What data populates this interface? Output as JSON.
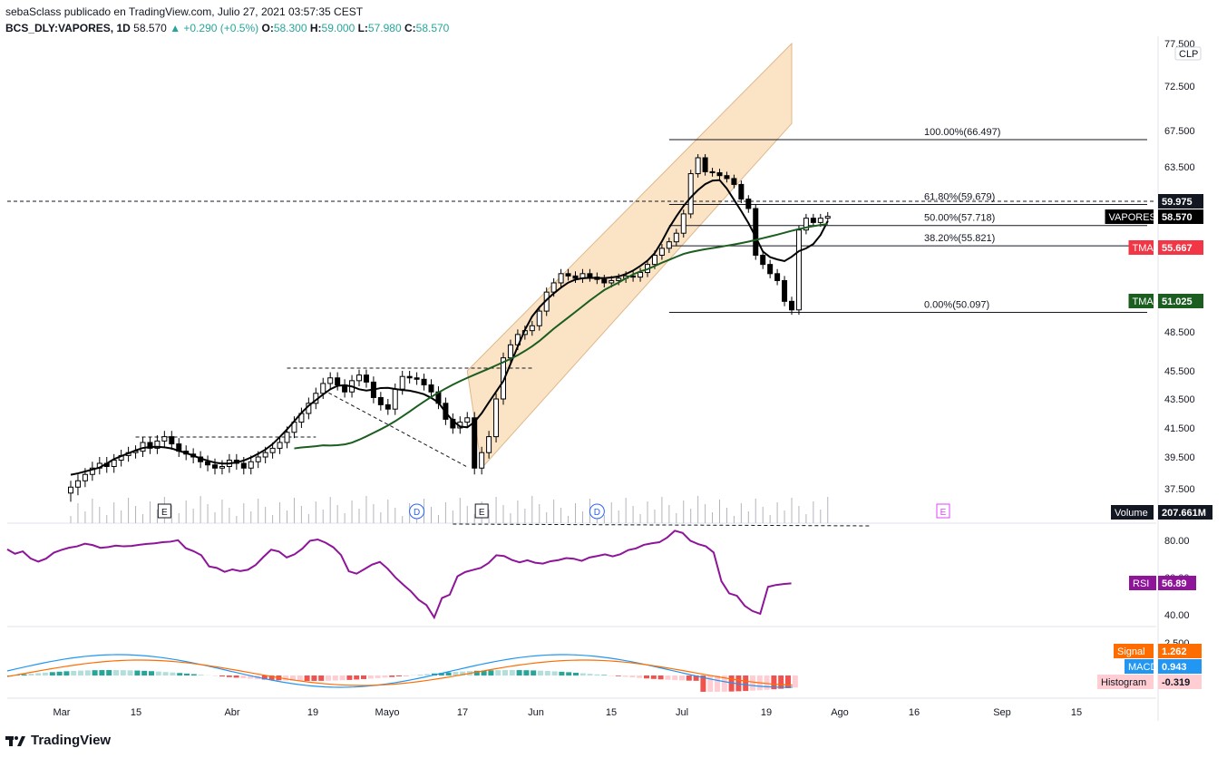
{
  "header": {
    "line1": "sebaSclass publicado en TradingView.com, Julio 27, 2021 03:57:35 CEST",
    "symbol": "BCS_DLY:VAPORES, 1D",
    "price": "58.570",
    "change": "▲ +0.290 (+0.5%)",
    "o_label": "O:",
    "o": "58.300",
    "h_label": "H:",
    "h": "59.000",
    "l_label": "L:",
    "l": "57.980",
    "c_label": "C:",
    "c": "58.570"
  },
  "footer": {
    "brand": "TradingView"
  },
  "colors": {
    "up": "#ffffff",
    "down": "#000000",
    "tma_red": "#f23645",
    "tma_black": "#000000",
    "tma_green": "#1b5e20",
    "channel": "#fbe0c0",
    "rsi": "#8e1599",
    "macd": "#2196f3",
    "signal": "#ff6d00",
    "hist_pos_strong": "#26a69a",
    "hist_pos_weak": "#b2dfdb",
    "hist_neg_strong": "#ef5350",
    "hist_neg_weak": "#ffcdd2"
  },
  "chart_data": {
    "type": "candlestick",
    "symbol": "VAPORES",
    "currency": "CLP",
    "price_ticks": [
      "77.500",
      "72.500",
      "67.500",
      "63.500",
      "59.975",
      "58.570",
      "55.667",
      "51.025",
      "48.500",
      "45.500",
      "43.500",
      "41.500",
      "39.500",
      "37.500"
    ],
    "price_axis_ticks": [
      77.5,
      72.5,
      67.5,
      63.5,
      48.5,
      45.5,
      43.5,
      41.5,
      39.5,
      37.5
    ],
    "x_ticks": [
      "Mar",
      "15",
      "Abr",
      "19",
      "Mayo",
      "17",
      "Jun",
      "15",
      "Jul",
      "19",
      "Ago",
      "16",
      "Sep",
      "15"
    ],
    "last_price": 58.57,
    "dashed_level": 59.975,
    "candles_close": [
      37.6,
      38.0,
      38.4,
      38.8,
      39.1,
      38.9,
      39.3,
      39.6,
      39.8,
      39.9,
      40.5,
      40.1,
      40.6,
      40.9,
      40.4,
      39.9,
      39.7,
      39.5,
      39.2,
      39.0,
      38.8,
      38.9,
      39.3,
      39.1,
      38.8,
      39.2,
      39.5,
      39.8,
      40.1,
      40.5,
      41.2,
      41.9,
      42.5,
      43.2,
      43.9,
      44.6,
      45.0,
      44.5,
      44.0,
      44.8,
      45.2,
      44.7,
      43.6,
      43.1,
      42.8,
      44.2,
      45.1,
      45.0,
      44.9,
      44.5,
      44.0,
      43.2,
      42.1,
      41.5,
      41.9,
      42.2,
      38.8,
      39.8,
      40.9,
      43.5,
      46.5,
      47.5,
      48.3,
      48.6,
      49.0,
      50.2,
      51.8,
      52.6,
      53.4,
      53.2,
      53.0,
      53.4,
      53.1,
      52.9,
      52.6,
      52.8,
      53.0,
      53.2,
      53.1,
      53.5,
      54.2,
      55.0,
      55.6,
      56.2,
      57.0,
      58.8,
      62.8,
      64.5,
      63.0,
      62.9,
      62.6,
      62.3,
      61.7,
      60.2,
      59.3,
      55.0,
      54.2,
      53.4,
      52.8,
      51.0,
      50.3,
      57.3,
      58.4,
      58.0,
      58.4,
      58.57
    ],
    "fibonacci": [
      {
        "label": "100.00%(66.497)",
        "value": 66.497
      },
      {
        "label": "61.80%(59.679)",
        "value": 59.679
      },
      {
        "label": "50.00%(57.718)",
        "value": 57.718
      },
      {
        "label": "38.20%(55.821)",
        "value": 55.821
      },
      {
        "label": "0.00%(50.097)",
        "value": 50.097
      }
    ],
    "price_labels": [
      {
        "name": "VAPORES",
        "value": "58.570",
        "bg": "#000000"
      },
      {
        "name": "TMA",
        "value": "55.667",
        "bg": "#f23645"
      },
      {
        "name": "TMA",
        "value": "51.025",
        "bg": "#1b5e20"
      },
      {
        "name": "Volume",
        "value": "207.661M",
        "bg": "#131722"
      }
    ],
    "events": [
      "E",
      "D",
      "E",
      "D",
      "E"
    ],
    "rsi": {
      "name": "RSI",
      "value": "56.89",
      "ticks": [
        "80.00",
        "60.00",
        "40.00"
      ],
      "values": [
        75.2,
        72.8,
        74.1,
        70.3,
        68.6,
        70.2,
        73.4,
        74.9,
        76.1,
        76.8,
        78.2,
        77.5,
        76.0,
        76.4,
        77.2,
        76.8,
        77.0,
        77.6,
        78.1,
        78.4,
        79.0,
        79.3,
        80.1,
        75.8,
        74.2,
        72.0,
        66.0,
        65.2,
        63.1,
        64.4,
        63.5,
        64.2,
        66.8,
        71.1,
        75.0,
        74.0,
        70.8,
        72.5,
        75.5,
        79.8,
        80.5,
        78.8,
        76.3,
        72.1,
        63.4,
        62.1,
        64.5,
        67.0,
        68.4,
        64.8,
        60.1,
        56.2,
        52.6,
        48.0,
        45.2,
        38.5,
        49.0,
        50.8,
        60.7,
        63.0,
        64.1,
        65.2,
        67.8,
        72.0,
        71.6,
        69.5,
        68.2,
        69.3,
        68.0,
        67.5,
        68.8,
        69.4,
        70.5,
        70.1,
        69.0,
        70.8,
        71.6,
        72.5,
        71.4,
        72.6,
        74.8,
        75.7,
        77.6,
        78.4,
        79.0,
        81.5,
        85.2,
        84.0,
        79.8,
        78.0,
        76.8,
        73.5,
        58.0,
        51.5,
        50.2,
        44.8,
        42.0,
        40.5,
        55.0,
        56.0,
        56.5,
        56.89
      ]
    },
    "macd": {
      "signal_label": "Signal",
      "signal_value": "1.262",
      "macd_label": "MACD",
      "macd_value": "0.943",
      "hist_label": "Histogram",
      "hist_value": "-0.319",
      "tick": "2.500"
    }
  }
}
